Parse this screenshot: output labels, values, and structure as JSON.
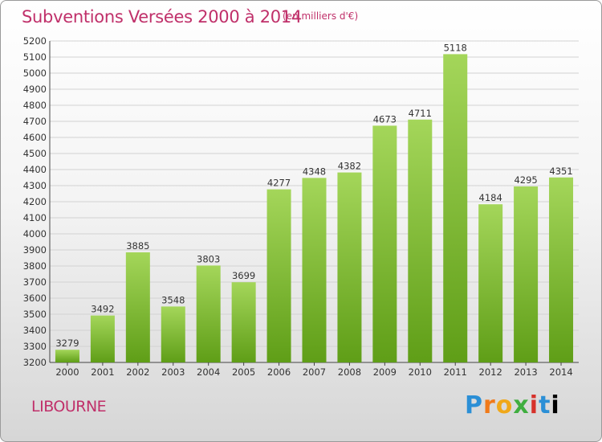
{
  "header": {
    "title": "Subventions Versées 2000 à 2014",
    "unit_note": "(en milliers d'€)"
  },
  "footer": {
    "city": "LIBOURNE",
    "logo_text": "Proxiti"
  },
  "colors": {
    "title": "#c0306a",
    "bar_light": "#a4d65a",
    "bar_dark": "#5f9e17"
  },
  "chart_data": {
    "type": "bar",
    "title": "Subventions Versées 2000 à 2014",
    "xlabel": "",
    "ylabel": "",
    "categories": [
      "2000",
      "2001",
      "2002",
      "2003",
      "2004",
      "2005",
      "2006",
      "2007",
      "2008",
      "2009",
      "2010",
      "2011",
      "2012",
      "2013",
      "2014"
    ],
    "values": [
      3279,
      3492,
      3885,
      3548,
      3803,
      3699,
      4277,
      4348,
      4382,
      4673,
      4711,
      5118,
      4184,
      4295,
      4351
    ],
    "ylim": [
      3200,
      5200
    ],
    "yticks": [
      3200,
      3300,
      3400,
      3500,
      3600,
      3700,
      3800,
      3900,
      4000,
      4100,
      4200,
      4300,
      4400,
      4500,
      4600,
      4700,
      4800,
      4900,
      5000,
      5100,
      5200
    ],
    "grid": true,
    "legend": "none"
  }
}
